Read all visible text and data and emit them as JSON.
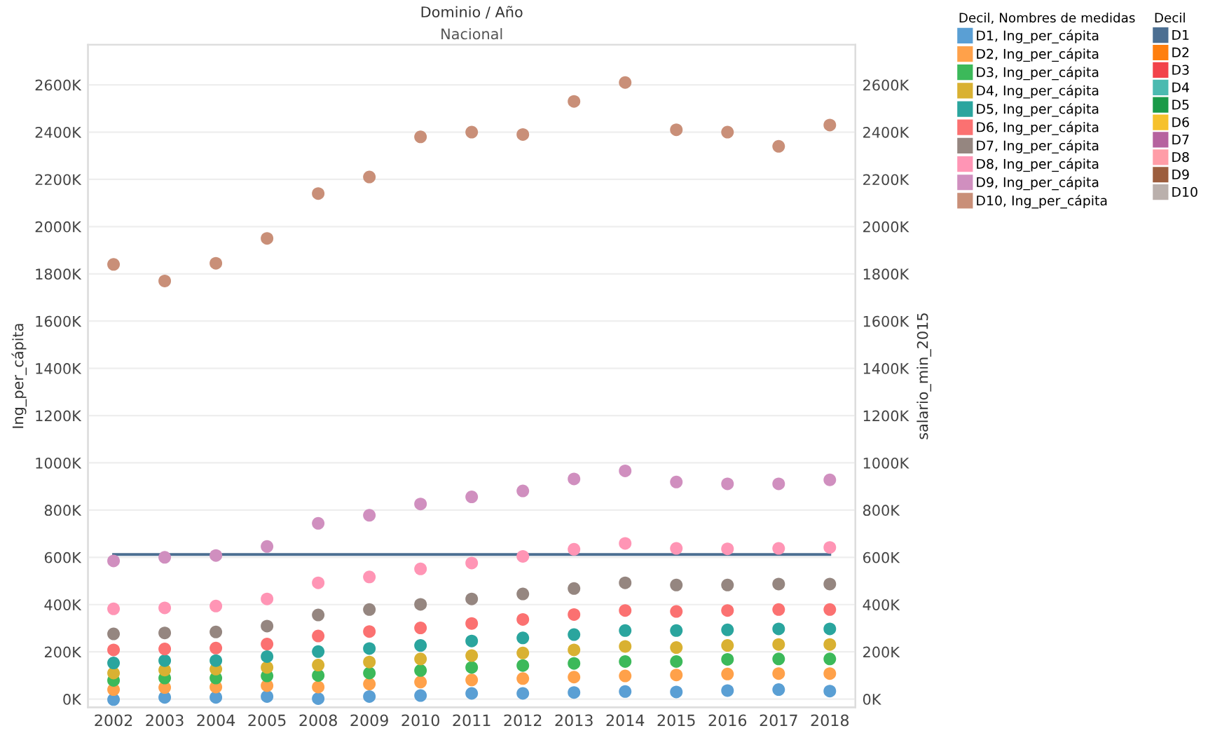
{
  "chart_data": {
    "type": "scatter",
    "title": "Dominio / Año",
    "subtitle": "Nacional",
    "ylabel": "Ing_per_cápita",
    "y2label": "salario_min_2015",
    "legend_title": "Decil, Nombres de medidas",
    "annotations": [
      "Decil"
    ],
    "categories": [
      "2002",
      "2003",
      "2004",
      "2005",
      "2008",
      "2009",
      "2010",
      "2011",
      "2012",
      "2013",
      "2014",
      "2015",
      "2016",
      "2017",
      "2018"
    ],
    "series": [
      {
        "name": "D1, Ing_per_cápita",
        "color": "#5a9fd4",
        "values": [
          -2,
          7,
          7,
          11,
          2,
          11,
          15,
          24,
          24,
          28,
          32,
          30,
          36,
          40,
          34
        ]
      },
      {
        "name": "D2, Ing_per_cápita",
        "color": "#ffa14a",
        "values": [
          40,
          49,
          51,
          57,
          51,
          64,
          72,
          81,
          87,
          93,
          98,
          102,
          106,
          108,
          108
        ]
      },
      {
        "name": "D3, Ing_per_cápita",
        "color": "#3cb95a",
        "values": [
          79,
          89,
          89,
          98,
          100,
          110,
          121,
          134,
          142,
          151,
          159,
          159,
          168,
          170,
          170
        ]
      },
      {
        "name": "D4, Ing_per_cápita",
        "color": "#d9b132",
        "values": [
          110,
          123,
          127,
          134,
          144,
          157,
          170,
          184,
          195,
          208,
          223,
          218,
          227,
          231,
          231
        ]
      },
      {
        "name": "D5, Ing_per_cápita",
        "color": "#2aa59e",
        "values": [
          153,
          163,
          163,
          180,
          201,
          214,
          227,
          246,
          259,
          273,
          290,
          290,
          293,
          297,
          297
        ]
      },
      {
        "name": "D6, Ing_per_cápita",
        "color": "#fb7171",
        "values": [
          208,
          212,
          216,
          233,
          267,
          286,
          301,
          320,
          337,
          358,
          375,
          371,
          375,
          379,
          379
        ]
      },
      {
        "name": "D7, Ing_per_cápita",
        "color": "#958680",
        "values": [
          276,
          280,
          284,
          309,
          356,
          379,
          401,
          424,
          445,
          468,
          492,
          483,
          483,
          487,
          487
        ]
      },
      {
        "name": "D8, Ing_per_cápita",
        "color": "#ff95b5",
        "values": [
          382,
          386,
          394,
          424,
          492,
          517,
          551,
          576,
          604,
          634,
          659,
          638,
          636,
          638,
          642
        ]
      },
      {
        "name": "D9, Ing_per_cápita",
        "color": "#d08fbf",
        "values": [
          585,
          600,
          608,
          646,
          744,
          778,
          826,
          856,
          881,
          932,
          966,
          919,
          911,
          911,
          928
        ]
      },
      {
        "name": "D10, Ing_per_cápita",
        "color": "#c98f78",
        "values": [
          1840,
          1770,
          1845,
          1950,
          2140,
          2210,
          2380,
          2400,
          2390,
          2530,
          2610,
          2410,
          2400,
          2340,
          2430
        ]
      },
      {
        "name": "D1",
        "type": "line",
        "axis": "y2",
        "marker": "none",
        "color": "#4c6f92",
        "values": [
          612,
          612,
          612,
          612,
          612,
          612,
          612,
          612,
          612,
          612,
          612,
          612,
          612,
          612,
          612
        ]
      },
      {
        "name": "D2",
        "type": "line",
        "axis": "y2",
        "color": "#ff7f0e",
        "values": [
          null,
          null,
          null,
          null,
          null,
          null,
          null,
          null,
          null,
          null,
          null,
          null,
          null,
          null,
          null
        ]
      },
      {
        "name": "D3",
        "type": "line",
        "axis": "y2",
        "color": "#f2434b",
        "values": [
          null,
          null,
          null,
          null,
          null,
          null,
          null,
          null,
          null,
          null,
          null,
          null,
          null,
          null,
          null
        ]
      },
      {
        "name": "D4",
        "type": "line",
        "axis": "y2",
        "color": "#4bbab0",
        "values": [
          null,
          null,
          null,
          null,
          null,
          null,
          null,
          null,
          null,
          null,
          null,
          null,
          null,
          null,
          null
        ]
      },
      {
        "name": "D5",
        "type": "line",
        "axis": "y2",
        "color": "#1a9a48",
        "values": [
          null,
          null,
          null,
          null,
          null,
          null,
          null,
          null,
          null,
          null,
          null,
          null,
          null,
          null,
          null
        ]
      },
      {
        "name": "D6",
        "type": "line",
        "axis": "y2",
        "color": "#f6c12d",
        "values": [
          null,
          null,
          null,
          null,
          null,
          null,
          null,
          null,
          null,
          null,
          null,
          null,
          null,
          null,
          null
        ]
      },
      {
        "name": "D7",
        "type": "line",
        "axis": "y2",
        "color": "#b6639f",
        "values": [
          null,
          null,
          null,
          null,
          null,
          null,
          null,
          null,
          null,
          null,
          null,
          null,
          null,
          null,
          null
        ]
      },
      {
        "name": "D8",
        "type": "line",
        "axis": "y2",
        "color": "#ff9da7",
        "values": [
          null,
          null,
          null,
          null,
          null,
          null,
          null,
          null,
          null,
          null,
          null,
          null,
          null,
          null,
          null
        ]
      },
      {
        "name": "D9",
        "type": "line",
        "axis": "y2",
        "color": "#9c5e3e",
        "values": [
          null,
          null,
          null,
          null,
          null,
          null,
          null,
          null,
          null,
          null,
          null,
          null,
          null,
          null,
          null
        ]
      },
      {
        "name": "D10",
        "type": "line",
        "axis": "y2",
        "color": "#bab0ac",
        "values": [
          null,
          null,
          null,
          null,
          null,
          null,
          null,
          null,
          null,
          null,
          null,
          null,
          null,
          null,
          null
        ]
      }
    ],
    "ylim": [
      -35,
      2770
    ],
    "y2lim": [
      -35,
      2770
    ],
    "yticks": [
      {
        "value": 0,
        "label": "0K"
      },
      {
        "value": 200,
        "label": "200K"
      },
      {
        "value": 400,
        "label": "400K"
      },
      {
        "value": 600,
        "label": "600K"
      },
      {
        "value": 800,
        "label": "800K"
      },
      {
        "value": 1000,
        "label": "1000K"
      },
      {
        "value": 1200,
        "label": "1200K"
      },
      {
        "value": 1400,
        "label": "1400K"
      },
      {
        "value": 1600,
        "label": "1600K"
      },
      {
        "value": 1800,
        "label": "1800K"
      },
      {
        "value": 2000,
        "label": "2000K"
      },
      {
        "value": 2200,
        "label": "2200K"
      },
      {
        "value": 2400,
        "label": "2400K"
      },
      {
        "value": 2600,
        "label": "2600K"
      }
    ],
    "y2ticks": [
      {
        "value": 0,
        "label": "0K"
      },
      {
        "value": 200,
        "label": "200K"
      },
      {
        "value": 400,
        "label": "400K"
      },
      {
        "value": 600,
        "label": "600K"
      },
      {
        "value": 800,
        "label": "800K"
      },
      {
        "value": 1000,
        "label": "1000K"
      },
      {
        "value": 1200,
        "label": "1200K"
      },
      {
        "value": 1400,
        "label": "1400K"
      },
      {
        "value": 1600,
        "label": "1600K"
      },
      {
        "value": 1800,
        "label": "1800K"
      },
      {
        "value": 2000,
        "label": "2000K"
      },
      {
        "value": 2200,
        "label": "2200K"
      },
      {
        "value": 2400,
        "label": "2400K"
      },
      {
        "value": 2600,
        "label": "2600K"
      }
    ],
    "grid": "y",
    "legend": "right",
    "marker": "circle"
  }
}
